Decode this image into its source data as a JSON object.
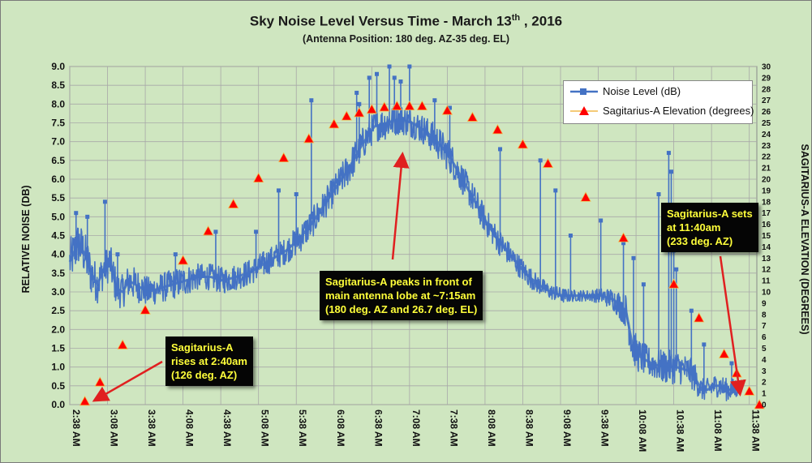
{
  "title_main": "Sky Noise Level  Versus Time - March 13",
  "title_sup": "th",
  "title_tail": " , 2016",
  "subtitle": "(Antenna Position: 180  deg. AZ-35 deg. EL)",
  "legend": {
    "noise_label": "Noise Level (dB)",
    "elev_label": "Sagitarius-A Elevation (degrees)"
  },
  "annotations": {
    "rise": "Sagitarius-A\nrises at 2:40am\n(126 deg. AZ)",
    "peak": "Sagitarius-A peaks in front of\nmain antenna lobe at ~7:15am\n(180 deg. AZ and 26.7 deg. EL)",
    "set": "Sagitarius-A sets\nat 11:40am\n(233 deg. AZ)"
  },
  "colors": {
    "background": "#cfe6c0",
    "grid": "#a8a8a8",
    "noise_series": "#4472c4",
    "elev_marker": "#ff0000",
    "elev_line": "#f0b84a",
    "callout_bg": "#050505",
    "callout_text": "#ffff3a",
    "arrow": "#e02020"
  },
  "chart_data": {
    "type": "line",
    "title": "Sky Noise Level  Versus Time - March 13th , 2016",
    "subtitle": "(Antenna Position: 180  deg. AZ-35 deg. EL)",
    "xlabel": "",
    "ylabel": "RELATIVE NOISE (DB)",
    "y2label": "SAGITARIUS-A ELEVATION (DEGREES)",
    "x_tick_labels": [
      "2:38 AM",
      "3:08 AM",
      "3:38 AM",
      "4:08 AM",
      "4:38 AM",
      "5:08 AM",
      "5:38 AM",
      "6:08 AM",
      "6:38 AM",
      "7:08 AM",
      "7:38 AM",
      "8:08 AM",
      "8:38 AM",
      "9:08 AM",
      "9:38 AM",
      "10:08 AM",
      "10:38 AM",
      "11:08 AM",
      "11:38 AM"
    ],
    "x_range_minutes_after_midnight": [
      158,
      704
    ],
    "ylim": [
      0,
      9
    ],
    "y_ticks": [
      "0.0",
      "0.5",
      "1.0",
      "1.5",
      "2.0",
      "2.5",
      "3.0",
      "3.5",
      "4.0",
      "4.5",
      "5.0",
      "5.5",
      "6.0",
      "6.5",
      "7.0",
      "7.5",
      "8.0",
      "8.5",
      "9.0"
    ],
    "y2lim": [
      0,
      30
    ],
    "y2_ticks": [
      "0",
      "1",
      "2",
      "3",
      "4",
      "5",
      "6",
      "7",
      "8",
      "9",
      "10",
      "11",
      "12",
      "13",
      "14",
      "15",
      "16",
      "17",
      "18",
      "19",
      "20",
      "21",
      "22",
      "23",
      "24",
      "25",
      "26",
      "27",
      "28",
      "29",
      "30"
    ],
    "grid": true,
    "legend_position": "top-right",
    "series": [
      {
        "name": "Noise Level (dB)",
        "axis": "left",
        "time": [
          "2:38",
          "2:45",
          "2:50",
          "2:55",
          "3:00",
          "3:05",
          "3:10",
          "3:15",
          "3:20",
          "3:25",
          "3:30",
          "3:40",
          "3:50",
          "4:00",
          "4:10",
          "4:20",
          "4:30",
          "4:40",
          "4:50",
          "5:00",
          "5:10",
          "5:20",
          "5:30",
          "5:40",
          "5:50",
          "6:00",
          "6:10",
          "6:20",
          "6:30",
          "6:40",
          "6:50",
          "7:00",
          "7:10",
          "7:20",
          "7:30",
          "7:40",
          "7:50",
          "8:00",
          "8:10",
          "8:20",
          "8:30",
          "8:40",
          "8:50",
          "9:00",
          "9:10",
          "9:20",
          "9:30",
          "9:40",
          "9:50",
          "10:00",
          "10:05",
          "10:10",
          "10:20",
          "10:30",
          "10:40",
          "10:50",
          "10:55",
          "11:00",
          "11:05",
          "11:10",
          "11:15",
          "11:20",
          "11:25",
          "11:30"
        ],
        "values": [
          3.8,
          4.3,
          4.0,
          3.5,
          3.2,
          3.6,
          3.8,
          3.1,
          3.0,
          3.3,
          3.2,
          3.0,
          3.1,
          3.2,
          3.3,
          3.4,
          3.4,
          3.3,
          3.4,
          3.5,
          3.7,
          3.9,
          4.1,
          4.4,
          4.8,
          5.3,
          5.8,
          6.3,
          6.9,
          7.4,
          7.5,
          7.6,
          7.5,
          7.3,
          7.0,
          6.6,
          6.0,
          5.4,
          4.8,
          4.3,
          3.9,
          3.5,
          3.2,
          3.0,
          2.9,
          2.9,
          2.9,
          2.9,
          2.8,
          2.5,
          1.6,
          1.3,
          1.1,
          1.0,
          1.0,
          0.9,
          0.7,
          0.4,
          0.4,
          0.5,
          0.5,
          0.4,
          0.4,
          0.5
        ],
        "band_half_width_db": [
          0.6,
          0.6,
          0.6,
          0.6,
          0.5,
          0.5,
          0.5,
          0.5,
          0.45,
          0.45,
          0.45,
          0.4,
          0.4,
          0.4,
          0.4,
          0.35,
          0.35,
          0.35,
          0.35,
          0.35,
          0.35,
          0.35,
          0.35,
          0.4,
          0.4,
          0.4,
          0.4,
          0.45,
          0.45,
          0.4,
          0.45,
          0.4,
          0.4,
          0.4,
          0.45,
          0.45,
          0.4,
          0.4,
          0.35,
          0.35,
          0.3,
          0.3,
          0.25,
          0.2,
          0.2,
          0.15,
          0.15,
          0.2,
          0.3,
          0.45,
          0.5,
          0.45,
          0.4,
          0.45,
          0.45,
          0.4,
          0.4,
          0.3,
          0.3,
          0.3,
          0.3,
          0.3,
          0.3,
          0.3
        ],
        "spikes": [
          {
            "time": "2:43",
            "value": 5.1
          },
          {
            "time": "2:52",
            "value": 5.0
          },
          {
            "time": "3:06",
            "value": 5.4
          },
          {
            "time": "3:16",
            "value": 4.0
          },
          {
            "time": "4:02",
            "value": 4.0
          },
          {
            "time": "4:34",
            "value": 4.6
          },
          {
            "time": "5:06",
            "value": 4.6
          },
          {
            "time": "5:24",
            "value": 5.7
          },
          {
            "time": "5:38",
            "value": 5.6
          },
          {
            "time": "5:50",
            "value": 8.1
          },
          {
            "time": "6:26",
            "value": 8.3
          },
          {
            "time": "6:28",
            "value": 8.0
          },
          {
            "time": "6:36",
            "value": 8.7
          },
          {
            "time": "6:42",
            "value": 8.8
          },
          {
            "time": "6:52",
            "value": 9.0
          },
          {
            "time": "6:56",
            "value": 8.7
          },
          {
            "time": "7:01",
            "value": 8.6
          },
          {
            "time": "7:08",
            "value": 9.0
          },
          {
            "time": "7:28",
            "value": 8.1
          },
          {
            "time": "7:40",
            "value": 7.9
          },
          {
            "time": "8:20",
            "value": 6.8
          },
          {
            "time": "8:52",
            "value": 6.5
          },
          {
            "time": "9:04",
            "value": 5.7
          },
          {
            "time": "9:16",
            "value": 4.5
          },
          {
            "time": "9:40",
            "value": 4.9
          },
          {
            "time": "9:58",
            "value": 4.3
          },
          {
            "time": "10:06",
            "value": 3.9
          },
          {
            "time": "10:14",
            "value": 3.2
          },
          {
            "time": "10:26",
            "value": 5.6
          },
          {
            "time": "10:34",
            "value": 6.7
          },
          {
            "time": "10:36",
            "value": 6.2
          },
          {
            "time": "10:38",
            "value": 4.1
          },
          {
            "time": "10:40",
            "value": 3.6
          },
          {
            "time": "10:52",
            "value": 2.5
          },
          {
            "time": "11:02",
            "value": 1.6
          },
          {
            "time": "11:24",
            "value": 1.1
          }
        ]
      },
      {
        "name": "Sagitarius-A Elevation (degrees)",
        "axis": "right",
        "time": [
          "2:50",
          "3:02",
          "3:20",
          "3:38",
          "4:08",
          "4:28",
          "4:48",
          "5:08",
          "5:28",
          "5:48",
          "6:08",
          "6:18",
          "6:28",
          "6:38",
          "6:48",
          "6:58",
          "7:08",
          "7:18",
          "7:38",
          "7:58",
          "8:18",
          "8:38",
          "8:58",
          "9:28",
          "9:58",
          "10:38",
          "10:58",
          "11:18",
          "11:28",
          "11:38",
          "11:46"
        ],
        "values": [
          0.3,
          2.0,
          5.3,
          8.4,
          12.8,
          15.4,
          17.8,
          20.1,
          21.9,
          23.6,
          24.9,
          25.6,
          25.9,
          26.2,
          26.4,
          26.5,
          26.5,
          26.5,
          26.1,
          25.5,
          24.4,
          23.1,
          21.4,
          18.4,
          14.8,
          10.7,
          7.7,
          4.5,
          2.8,
          1.2,
          0.0
        ]
      }
    ]
  }
}
